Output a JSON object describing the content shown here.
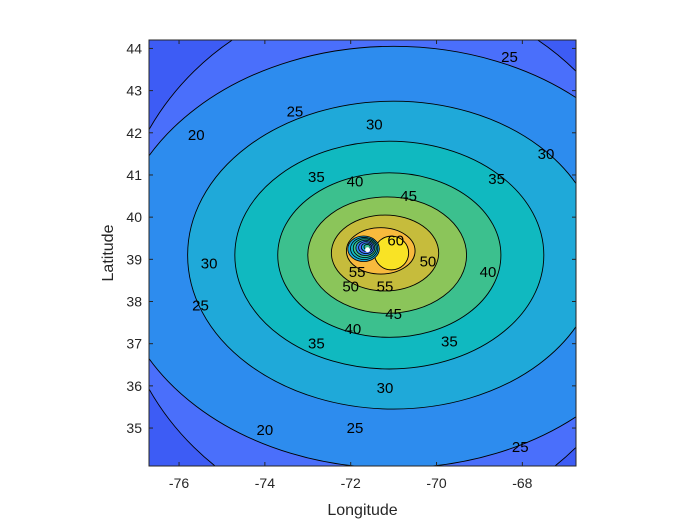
{
  "chart_data": {
    "type": "contour",
    "title": "",
    "xlabel": "Longitude",
    "ylabel": "Latitude",
    "xlim": [
      -76.7,
      -66.75
    ],
    "ylim": [
      34.1,
      44.2
    ],
    "xticks": [
      -76,
      -74,
      -72,
      -70,
      -68
    ],
    "yticks": [
      35,
      36,
      37,
      38,
      39,
      40,
      41,
      42,
      43,
      44
    ],
    "xtick_labels": [
      "-76",
      "-74",
      "-72",
      "-70",
      "-68"
    ],
    "ytick_labels": [
      "35",
      "36",
      "37",
      "38",
      "39",
      "40",
      "41",
      "42",
      "43",
      "44"
    ],
    "grid": false,
    "legend": "none",
    "colormap": "parula",
    "peak_center": [
      -71.1,
      39.1
    ],
    "source_center": [
      -71.7,
      39.25
    ],
    "levels": [
      {
        "value": 20,
        "label": "20",
        "fill": "#4a6ffb",
        "ellipse": {
          "cx": -71.2,
          "cy": 39.0,
          "rx": 6.3,
          "ry": 6.3
        }
      },
      {
        "value": 25,
        "label": "25",
        "fill": "#2d8cee",
        "ellipse": {
          "cx": -71.0,
          "cy": 39.05,
          "rx": 6.5,
          "ry": 5.0
        }
      },
      {
        "value": 30,
        "label": "30",
        "fill": "#1fa9d9",
        "ellipse": {
          "cx": -71.0,
          "cy": 39.1,
          "rx": 4.8,
          "ry": 3.65
        }
      },
      {
        "value": 35,
        "label": "35",
        "fill": "#10b9c0",
        "ellipse": {
          "cx": -71.1,
          "cy": 39.1,
          "rx": 3.6,
          "ry": 2.7
        }
      },
      {
        "value": 40,
        "label": "40",
        "fill": "#3cc08e",
        "ellipse": {
          "cx": -71.1,
          "cy": 39.1,
          "rx": 2.6,
          "ry": 1.95
        }
      },
      {
        "value": 45,
        "label": "45",
        "fill": "#8bc55a",
        "ellipse": {
          "cx": -71.15,
          "cy": 39.1,
          "rx": 1.85,
          "ry": 1.38
        }
      },
      {
        "value": 50,
        "label": "50",
        "fill": "#c6bc3c",
        "ellipse": {
          "cx": -71.2,
          "cy": 39.15,
          "rx": 1.25,
          "ry": 0.9
        }
      },
      {
        "value": 55,
        "label": "55",
        "fill": "#f8ba3d",
        "ellipse": {
          "cx": -71.3,
          "cy": 39.2,
          "rx": 0.8,
          "ry": 0.55
        }
      },
      {
        "value": 60,
        "label": "60",
        "fill": "#f9e325",
        "ellipse": {
          "cx": -71.05,
          "cy": 39.15,
          "rx": 0.4,
          "ry": 0.4
        }
      }
    ],
    "contour_labels": [
      {
        "text": "20",
        "x": -75.6,
        "y": 41.95
      },
      {
        "text": "20",
        "x": -74.0,
        "y": 34.95
      },
      {
        "text": "25",
        "x": -68.3,
        "y": 43.8
      },
      {
        "text": "25",
        "x": -73.3,
        "y": 42.5
      },
      {
        "text": "25",
        "x": -75.5,
        "y": 37.9
      },
      {
        "text": "25",
        "x": -71.9,
        "y": 35.0
      },
      {
        "text": "25",
        "x": -68.05,
        "y": 34.55
      },
      {
        "text": "30",
        "x": -71.45,
        "y": 42.2
      },
      {
        "text": "30",
        "x": -67.45,
        "y": 41.5
      },
      {
        "text": "30",
        "x": -75.3,
        "y": 38.9
      },
      {
        "text": "30",
        "x": -71.2,
        "y": 35.95
      },
      {
        "text": "35",
        "x": -72.8,
        "y": 40.95
      },
      {
        "text": "35",
        "x": -68.6,
        "y": 40.9
      },
      {
        "text": "35",
        "x": -72.8,
        "y": 37.0
      },
      {
        "text": "35",
        "x": -69.7,
        "y": 37.05
      },
      {
        "text": "40",
        "x": -71.9,
        "y": 40.85
      },
      {
        "text": "40",
        "x": -68.8,
        "y": 38.7
      },
      {
        "text": "40",
        "x": -71.95,
        "y": 37.35
      },
      {
        "text": "45",
        "x": -70.65,
        "y": 40.5
      },
      {
        "text": "45",
        "x": -71.0,
        "y": 37.7
      },
      {
        "text": "50",
        "x": -72.0,
        "y": 38.35
      },
      {
        "text": "50",
        "x": -70.2,
        "y": 38.95
      },
      {
        "text": "55",
        "x": -71.2,
        "y": 38.35
      },
      {
        "text": "55",
        "x": -71.85,
        "y": 38.7
      },
      {
        "text": "60",
        "x": -70.95,
        "y": 39.45
      }
    ]
  }
}
